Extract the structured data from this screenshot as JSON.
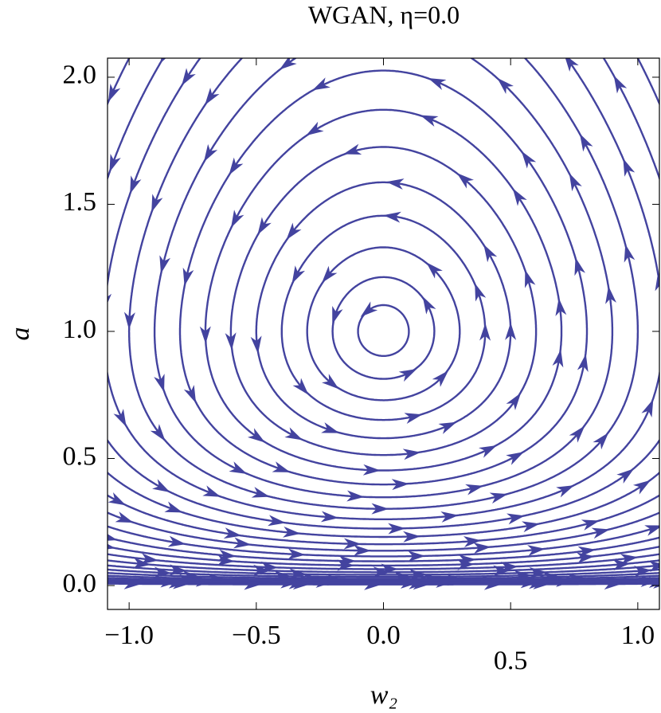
{
  "chart_data": {
    "type": "stream",
    "title": "WGAN, η=0.0",
    "x_label": "w₂",
    "y_label": "a",
    "xlim": [
      -1.085,
      1.085
    ],
    "ylim": [
      -0.094,
      2.075
    ],
    "xticks": [
      {
        "value": -1,
        "label": "−1.0"
      },
      {
        "value": -0.5,
        "label": "−0.5"
      },
      {
        "value": 0,
        "label": "0.0"
      },
      {
        "value": 0.5,
        "label": "0.5"
      },
      {
        "value": 1,
        "label": "1.0"
      }
    ],
    "yticks": [
      {
        "value": 0,
        "label": "0.0"
      },
      {
        "value": 0.5,
        "label": "0.5"
      },
      {
        "value": 1,
        "label": "1.0"
      },
      {
        "value": 1.5,
        "label": "1.5"
      },
      {
        "value": 2,
        "label": "2.0"
      }
    ],
    "color": "#43439f"
  }
}
